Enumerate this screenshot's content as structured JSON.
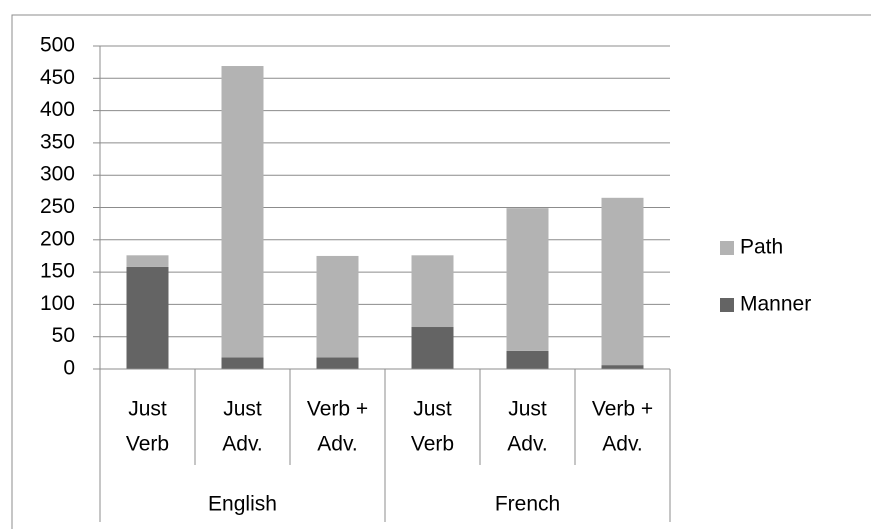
{
  "chart_data": {
    "type": "stacked_bar",
    "groups": [
      {
        "name": "English",
        "categories": [
          [
            "Just",
            "Verb"
          ],
          [
            "Just",
            "Adv."
          ],
          [
            "Verb +",
            "Adv."
          ]
        ]
      },
      {
        "name": "French",
        "categories": [
          [
            "Just",
            "Verb"
          ],
          [
            "Just",
            "Adv."
          ],
          [
            "Verb +",
            "Adv."
          ]
        ]
      }
    ],
    "series": [
      {
        "name": "Manner",
        "color": "#646464",
        "values": [
          158,
          18,
          18,
          65,
          28,
          6
        ]
      },
      {
        "name": "Path",
        "color": "#b3b3b3",
        "values": [
          18,
          451,
          157,
          111,
          221,
          259
        ]
      }
    ],
    "ylim": [
      0,
      500
    ],
    "yticks": [
      0,
      50,
      100,
      150,
      200,
      250,
      300,
      350,
      400,
      450,
      500
    ],
    "grid": true,
    "legend": "right"
  }
}
